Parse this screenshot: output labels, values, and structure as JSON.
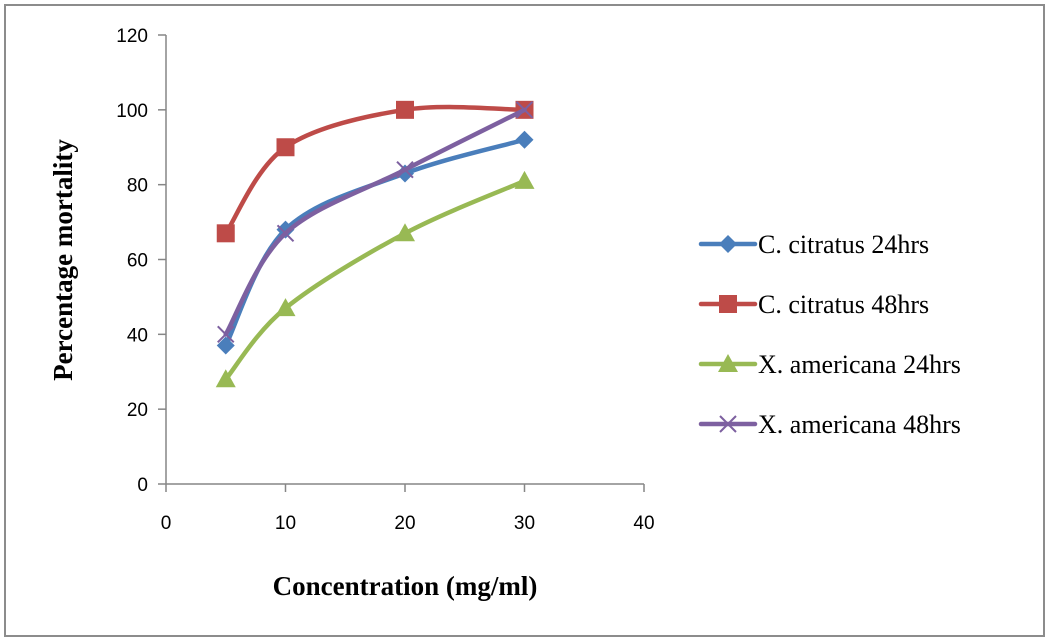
{
  "chart_data": {
    "type": "line",
    "title": "",
    "xlabel": "Concentration (mg/ml)",
    "ylabel": "Percentage mortality",
    "xlim": [
      0,
      40
    ],
    "ylim": [
      0,
      120
    ],
    "xticks": [
      0,
      10,
      20,
      30,
      40
    ],
    "yticks": [
      0,
      20,
      40,
      60,
      80,
      100,
      120
    ],
    "x_tick_labels": [
      "0",
      "10",
      "20",
      "30",
      "40"
    ],
    "y_tick_labels": [
      "0",
      "20",
      "40",
      "60",
      "80",
      "100",
      "120"
    ],
    "grid": false,
    "smooth": true,
    "legend_position": "right",
    "x": [
      5,
      10,
      20,
      30
    ],
    "series": [
      {
        "name": "C. citratus 24hrs",
        "color": "#4a7ebb",
        "marker": "diamond",
        "values": [
          37,
          68,
          83,
          92
        ]
      },
      {
        "name": "C. citratus 48hrs",
        "color": "#be4b48",
        "marker": "square",
        "values": [
          67,
          90,
          100,
          100
        ]
      },
      {
        "name": "X. americana 24hrs",
        "color": "#98b954",
        "marker": "triangle",
        "values": [
          28,
          47,
          67,
          81
        ]
      },
      {
        "name": "X. americana 48hrs",
        "color": "#7d60a0",
        "marker": "x",
        "values": [
          40,
          67,
          84,
          100
        ]
      }
    ]
  }
}
